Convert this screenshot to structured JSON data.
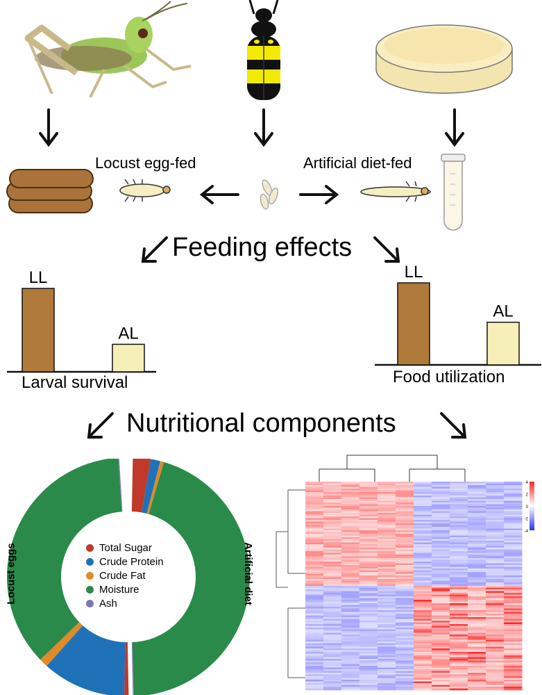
{
  "labels": {
    "locust_egg_fed": "Locust egg-fed",
    "artificial_diet_fed": "Artificial diet-fed",
    "feeding_effects": "Feeding effects",
    "nutritional_components": "Nutritional components"
  },
  "bar_charts": [
    {
      "title": "Larval survival",
      "categories": [
        "LL",
        "AL"
      ],
      "values": [
        100,
        33
      ],
      "colors": [
        "#b07a3a",
        "#f7efb8"
      ]
    },
    {
      "title": "Food utilization",
      "categories": [
        "LL",
        "AL"
      ],
      "values": [
        100,
        52
      ],
      "colors": [
        "#b07a3a",
        "#f7efb8"
      ]
    }
  ],
  "donut": {
    "left_label": "Locust eggs",
    "right_label": "Artificial diet",
    "legend": [
      {
        "label": "Total Sugar",
        "color": "#c0392b"
      },
      {
        "label": "Crude Protein",
        "color": "#1f72b8"
      },
      {
        "label": "Crude Fat",
        "color": "#e08a27"
      },
      {
        "label": "Moisture",
        "color": "#2a8a4a"
      },
      {
        "label": "Ash",
        "color": "#7e76b3"
      }
    ]
  },
  "heatmap": {
    "scale_ticks": [
      "4",
      "2",
      "0",
      "-2",
      "-4"
    ],
    "colors": {
      "high": "#ee2a2a",
      "mid": "#ffffff",
      "low": "#2a35e8"
    }
  },
  "chart_data": [
    {
      "type": "bar",
      "title": "Larval survival",
      "categories": [
        "LL",
        "AL"
      ],
      "values": [
        100,
        33
      ]
    },
    {
      "type": "bar",
      "title": "Food utilization",
      "categories": [
        "LL",
        "AL"
      ],
      "values": [
        100,
        52
      ]
    },
    {
      "type": "pie",
      "categories": [
        "Total Sugar",
        "Crude Protein",
        "Crude Fat",
        "Moisture",
        "Ash"
      ],
      "series": [
        {
          "name": "Locust eggs",
          "values": [
            1.2,
            23.0,
            2.4,
            73.1,
            0.3
          ]
        },
        {
          "name": "Artificial diet",
          "values": [
            4.9,
            2.6,
            1.0,
            91.2,
            0.3
          ]
        }
      ]
    }
  ]
}
